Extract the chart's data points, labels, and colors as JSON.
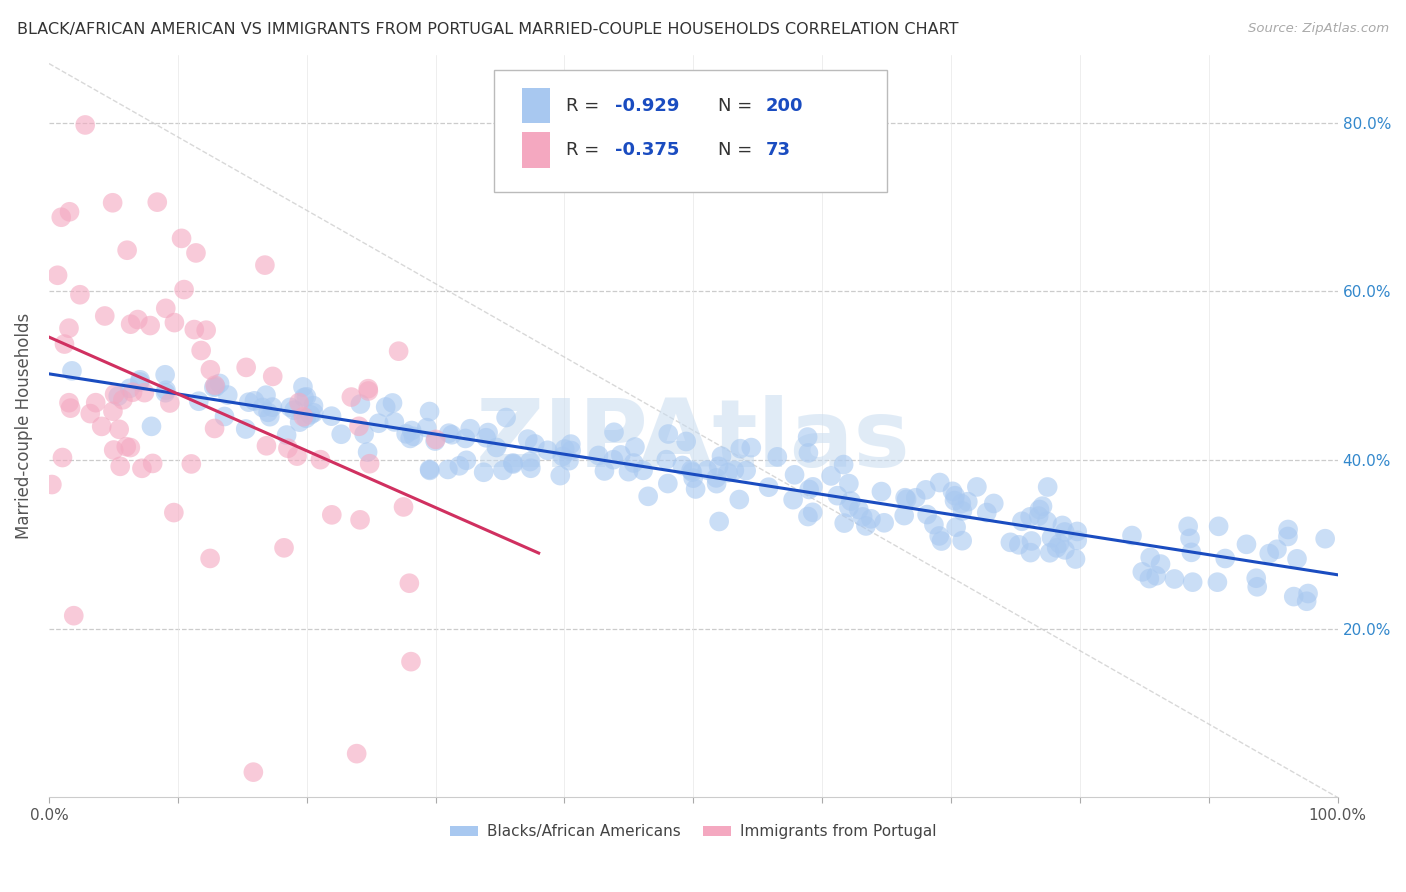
{
  "title": "BLACK/AFRICAN AMERICAN VS IMMIGRANTS FROM PORTUGAL MARRIED-COUPLE HOUSEHOLDS CORRELATION CHART",
  "source": "Source: ZipAtlas.com",
  "ylabel": "Married-couple Households",
  "xlabel": "",
  "xlim": [
    0,
    1.0
  ],
  "ylim": [
    0,
    0.88
  ],
  "watermark": "ZIPAtlas",
  "blue_R": -0.929,
  "blue_N": 200,
  "pink_R": -0.375,
  "pink_N": 73,
  "legend_label_blue": "Blacks/African Americans",
  "legend_label_pink": "Immigrants from Portugal",
  "blue_color": "#A8C8F0",
  "pink_color": "#F4A8C0",
  "blue_line_color": "#1A4CC0",
  "pink_line_color": "#D03060",
  "diagonal_color": "#C8C8C8",
  "background_color": "#FFFFFF",
  "title_color": "#333333",
  "axis_label_color": "#555555",
  "tick_color": "#555555",
  "legend_R_color": "#1A4CC0",
  "legend_N_color": "#1A4CC0",
  "right_tick_color": "#3388CC"
}
